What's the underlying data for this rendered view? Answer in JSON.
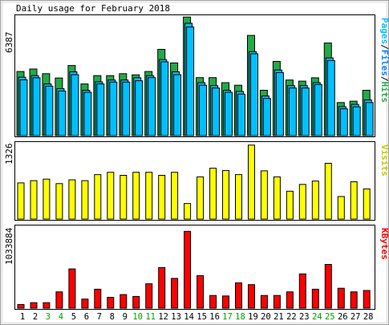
{
  "title": "Daily usage for February 2018",
  "colors": {
    "hits": "#00805c",
    "hits_fill": "#22aa44",
    "files": "#0080ff",
    "files_fill": "#1ab2ee",
    "pages": "#00c0ff",
    "visits": "#ffff00",
    "kbytes": "#ff0000",
    "weekend": "#00a000",
    "weekday": "#000080"
  },
  "right_labels": {
    "pages": "Pages",
    "files": "Files",
    "hits": "Hits",
    "sep": "/",
    "visits": "Visits",
    "kbytes": "KBytes"
  },
  "chart_data": {
    "type": "bar",
    "categories": [
      "1",
      "2",
      "3",
      "4",
      "5",
      "6",
      "7",
      "8",
      "9",
      "10",
      "11",
      "12",
      "13",
      "14",
      "15",
      "16",
      "17",
      "18",
      "19",
      "20",
      "21",
      "22",
      "23",
      "24",
      "25",
      "26",
      "27",
      "28"
    ],
    "weekend_days": [
      "3",
      "4",
      "10",
      "11",
      "17",
      "18",
      "24",
      "25"
    ],
    "panels": [
      {
        "name": "hits-files-pages",
        "ymax_label": "6387",
        "ylim": [
          0,
          6387
        ],
        "series": [
          {
            "name": "Hits",
            "values": [
              3450,
              3580,
              3330,
              3100,
              3770,
              2780,
              3230,
              3230,
              3330,
              3270,
              3450,
              4640,
              3910,
              6380,
              3120,
              3120,
              2850,
              2710,
              5390,
              2440,
              3990,
              2990,
              2930,
              3110,
              4980,
              1780,
              1850,
              2440
            ]
          },
          {
            "name": "Files",
            "values": [
              3140,
              3230,
              2780,
              2530,
              3430,
              2440,
              2890,
              2990,
              2990,
              3110,
              3230,
              4090,
              3430,
              6040,
              2850,
              2690,
              2440,
              2380,
              4520,
              2130,
              3530,
              2690,
              2690,
              2850,
              4180,
              1560,
              1680,
              1920
            ]
          },
          {
            "name": "Pages",
            "values": [
              3000,
              3110,
              2660,
              2400,
              3280,
              2330,
              2780,
              2880,
              2880,
              2950,
              3120,
              3970,
              3280,
              5840,
              2710,
              2560,
              2330,
              2230,
              4400,
              2000,
              3390,
              2560,
              2560,
              2750,
              4040,
              1440,
              1550,
              1780
            ]
          }
        ]
      },
      {
        "name": "visits",
        "ymax_label": "1326",
        "ylim": [
          0,
          1326
        ],
        "series": [
          {
            "name": "Visits",
            "values": [
              636,
              676,
              702,
              623,
              690,
              676,
              782,
              822,
              769,
              822,
              822,
              769,
              822,
              273,
              742,
              894,
              854,
              782,
              1300,
              848,
              742,
              490,
              610,
              669,
              980,
              397,
              656,
              530
            ]
          }
        ]
      },
      {
        "name": "kbytes",
        "ymax_label": "1033884",
        "ylim": [
          0,
          1033884
        ],
        "series": [
          {
            "name": "KBytes",
            "values": [
              48000,
              72000,
              72000,
              216000,
              521000,
              120000,
              252000,
              144000,
              180000,
              156000,
              324000,
              539000,
              395000,
              1020000,
              432000,
              168000,
              162000,
              336000,
              312000,
              168000,
              168000,
              216000,
              455000,
              252000,
              581000,
              264000,
              216000,
              234000
            ]
          }
        ]
      }
    ]
  }
}
